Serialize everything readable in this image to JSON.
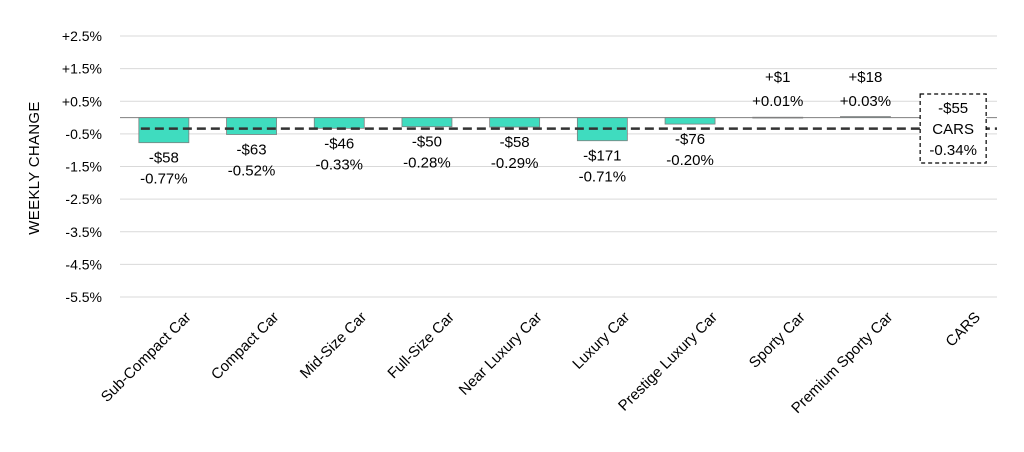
{
  "chart_data": {
    "type": "bar",
    "ylabel": "WEEKLY CHANGE",
    "ylim": [
      -5.5,
      2.5
    ],
    "yticks": [
      "+2.5%",
      "+1.5%",
      "+0.5%",
      "-0.5%",
      "-1.5%",
      "-2.5%",
      "-3.5%",
      "-4.5%",
      "-5.5%"
    ],
    "ytick_values": [
      2.5,
      1.5,
      0.5,
      -0.5,
      -1.5,
      -2.5,
      -3.5,
      -4.5,
      -5.5
    ],
    "categories": [
      "Sub-Compact Car",
      "Compact Car",
      "Mid-Size Car",
      "Full-Size Car",
      "Near Luxury Car",
      "Luxury Car",
      "Prestige Luxury Car",
      "Sporty Car",
      "Premium Sporty Car",
      "CARS"
    ],
    "values": [
      -0.77,
      -0.52,
      -0.33,
      -0.28,
      -0.29,
      -0.71,
      -0.2,
      0.01,
      0.03,
      null
    ],
    "dollar_labels": [
      "-$58",
      "-$63",
      "-$46",
      "-$50",
      "-$58",
      "-$171",
      "-$76",
      "+$1",
      "+$18",
      "-$55"
    ],
    "pct_labels": [
      "-0.77%",
      "-0.52%",
      "-0.33%",
      "-0.28%",
      "-0.29%",
      "-0.71%",
      "-0.20%",
      "+0.01%",
      "+0.03%",
      "-0.34%"
    ],
    "aggregate": {
      "label": "CARS",
      "value": -0.34
    },
    "reference_line": {
      "value": -0.34,
      "style": "dashed"
    },
    "colors": {
      "bar": "#3fdcbf",
      "bar_edge": "#7f7f7f",
      "grid": "#d9d9d9",
      "zero_line": "#7f7f7f",
      "ref_line": "#333333"
    },
    "grid": true,
    "legend": "none"
  }
}
